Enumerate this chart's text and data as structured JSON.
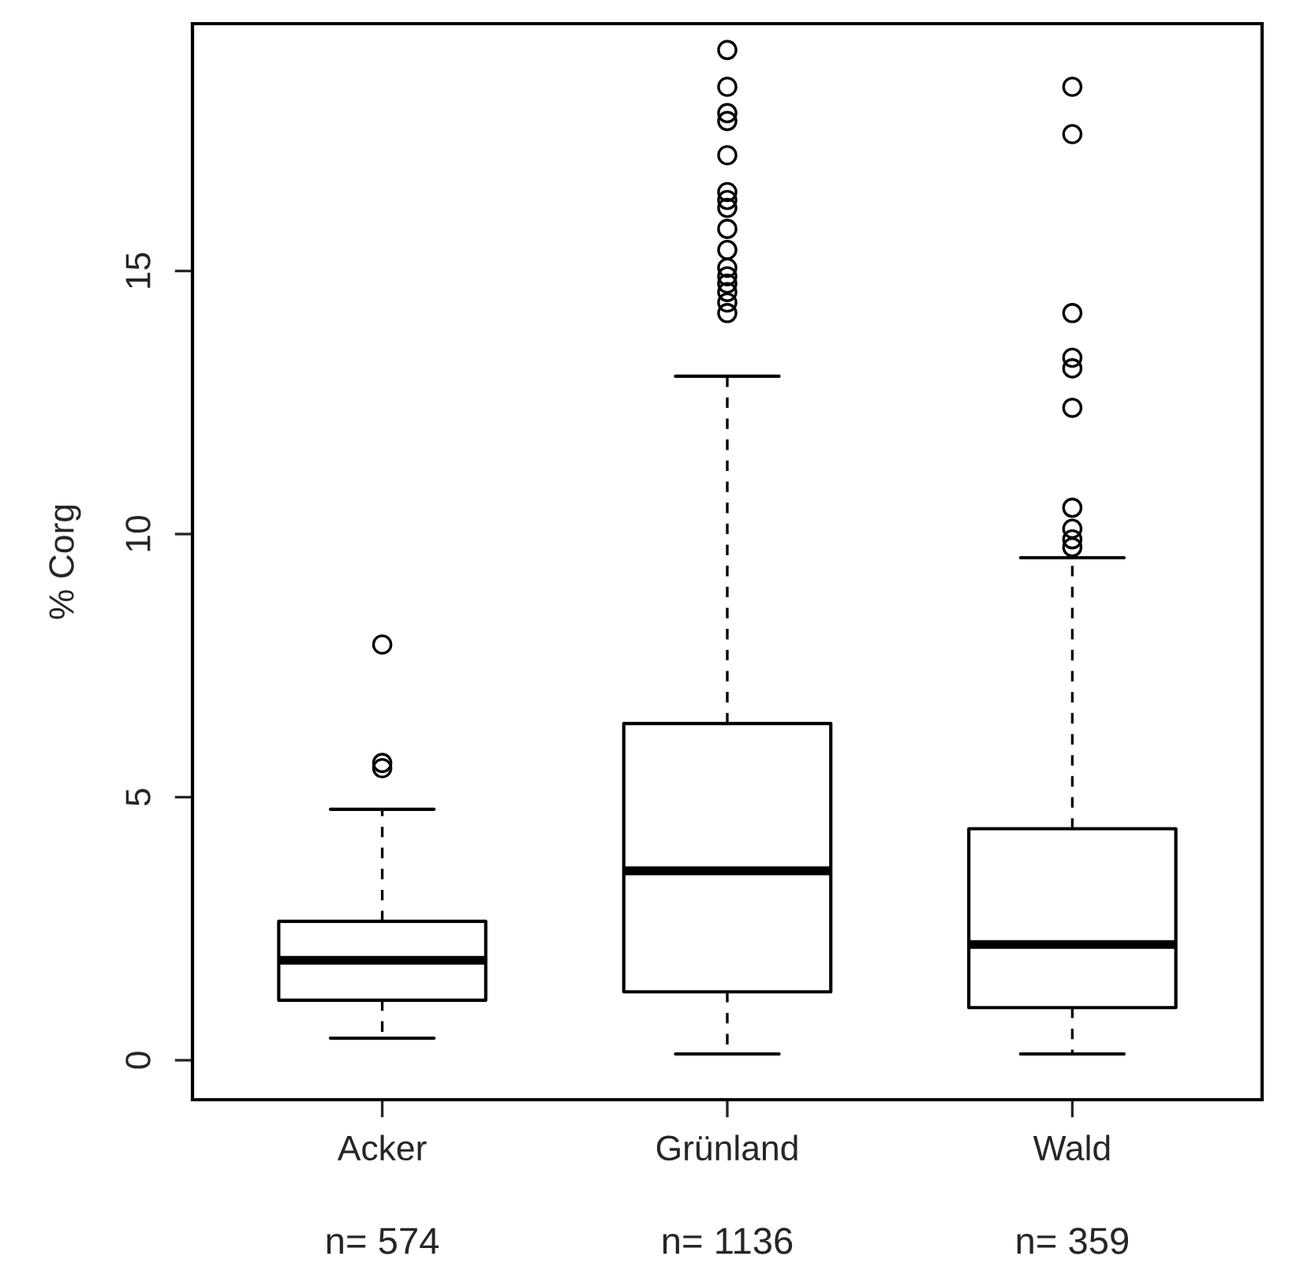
{
  "chart_data": {
    "type": "box",
    "ylabel": "% Corg",
    "categories": [
      "Acker",
      "Grünland",
      "Wald"
    ],
    "boxes": [
      {
        "low": 0.42,
        "q1": 1.14,
        "median": 1.9,
        "q3": 2.64,
        "high": 4.77,
        "outliers": [
          7.9,
          5.65,
          5.55
        ]
      },
      {
        "low": 0.12,
        "q1": 1.3,
        "median": 3.6,
        "q3": 6.4,
        "high": 13.0,
        "outliers": [
          19.2,
          18.5,
          18.0,
          17.85,
          17.2,
          16.5,
          16.35,
          16.2,
          15.8,
          15.4,
          15.06,
          14.9,
          14.76,
          14.6,
          14.4,
          14.2
        ]
      },
      {
        "low": 0.12,
        "q1": 1.0,
        "median": 2.2,
        "q3": 4.4,
        "high": 9.55,
        "outliers": [
          18.5,
          17.6,
          14.2,
          13.35,
          13.15,
          12.4,
          10.5,
          10.1,
          9.9,
          9.75
        ]
      }
    ],
    "annotations": [
      "n= 574",
      "n= 1136",
      "n= 359"
    ],
    "ylim": [
      -0.75,
      19.7
    ],
    "yticks": [
      0,
      5,
      10,
      15
    ],
    "grid": false
  }
}
